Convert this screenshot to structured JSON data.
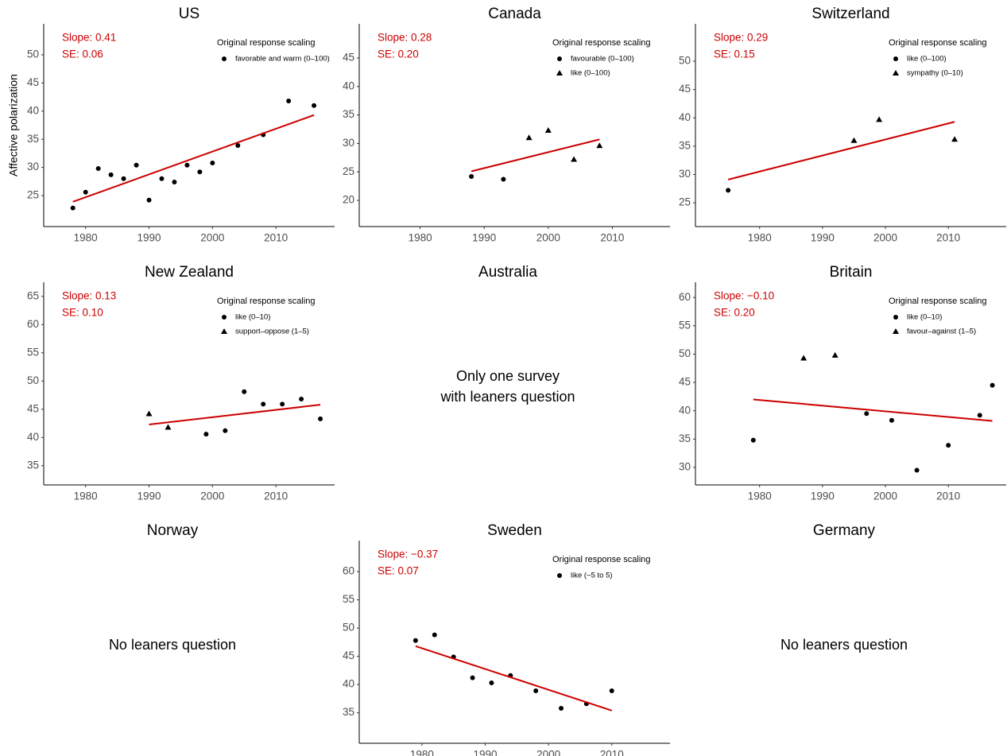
{
  "chart_data": [
    {
      "type": "scatter",
      "title": "US",
      "ylabel": "Affective polarization",
      "xlim": [
        1973.4,
        2019.25
      ],
      "xticks": [
        1980,
        1990,
        2000,
        2010
      ],
      "ylim": [
        19.5,
        55.5
      ],
      "yticks": [
        25,
        30,
        35,
        40,
        45,
        50
      ],
      "annotations": [
        "Slope: 0.41",
        "SE: 0.06"
      ],
      "annotation_color": "#cc0000",
      "legend_title": "Original response scaling",
      "series": [
        {
          "name": "favorable and warm (0–100)",
          "marker": "circle",
          "color": "#000000",
          "x": [
            1978,
            1980,
            1982,
            1984,
            1986,
            1988,
            1990,
            1992,
            1994,
            1996,
            1998,
            2000,
            2004,
            2008,
            2012,
            2016
          ],
          "y": [
            22.8,
            25.6,
            29.8,
            28.7,
            28.0,
            30.4,
            24.2,
            28.0,
            27.4,
            30.4,
            29.2,
            30.8,
            33.9,
            35.8,
            41.8,
            41.0
          ]
        }
      ],
      "trend": {
        "color": "#cc0000",
        "x": [
          1978,
          2016
        ],
        "y": [
          23.9,
          39.3
        ]
      }
    },
    {
      "type": "scatter",
      "title": "Canada",
      "xlim": [
        1970.5,
        2019
      ],
      "xticks": [
        1980,
        1990,
        2000,
        2010
      ],
      "ylim": [
        15.4,
        51
      ],
      "yticks": [
        20,
        25,
        30,
        35,
        40,
        45
      ],
      "annotations": [
        "Slope: 0.28",
        "SE: 0.20"
      ],
      "annotation_color": "#cc0000",
      "legend_title": "Original response scaling",
      "series": [
        {
          "name": "favourable (0–100)",
          "marker": "circle",
          "color": "#000000",
          "x": [
            1988,
            1993
          ],
          "y": [
            24.2,
            23.7
          ]
        },
        {
          "name": "like (0–100)",
          "marker": "triangle",
          "color": "#000000",
          "x": [
            1997,
            2000,
            2004,
            2008
          ],
          "y": [
            31.0,
            32.3,
            27.2,
            29.6
          ]
        }
      ],
      "trend": {
        "color": "#cc0000",
        "x": [
          1988,
          2008
        ],
        "y": [
          25.1,
          30.7
        ]
      }
    },
    {
      "type": "scatter",
      "title": "Switzerland",
      "xlim": [
        1969.8,
        2019.2
      ],
      "xticks": [
        1980,
        1990,
        2000,
        2010
      ],
      "ylim": [
        20.8,
        56.6
      ],
      "yticks": [
        25,
        30,
        35,
        40,
        45,
        50
      ],
      "annotations": [
        "Slope: 0.29",
        "SE: 0.15"
      ],
      "annotation_color": "#cc0000",
      "legend_title": "Original response scaling",
      "series": [
        {
          "name": "like (0–100)",
          "marker": "circle",
          "color": "#000000",
          "x": [
            1975
          ],
          "y": [
            27.2
          ]
        },
        {
          "name": "sympathy (0–10)",
          "marker": "triangle",
          "color": "#000000",
          "x": [
            1995,
            1999,
            2011
          ],
          "y": [
            36.0,
            39.7,
            36.2
          ]
        }
      ],
      "trend": {
        "color": "#cc0000",
        "x": [
          1975,
          2011
        ],
        "y": [
          29.1,
          39.3
        ]
      }
    },
    {
      "type": "scatter",
      "title": "New Zealand",
      "xlim": [
        1973.4,
        2019.25
      ],
      "xticks": [
        1980,
        1990,
        2000,
        2010
      ],
      "ylim": [
        31.6,
        67.5
      ],
      "yticks": [
        35,
        40,
        45,
        50,
        55,
        60,
        65
      ],
      "annotations": [
        "Slope: 0.13",
        "SE: 0.10"
      ],
      "annotation_color": "#cc0000",
      "legend_title": "Original response scaling",
      "series": [
        {
          "name": "like (0–10)",
          "marker": "circle",
          "color": "#000000",
          "x": [
            1999,
            2002,
            2005,
            2008,
            2011,
            2014,
            2017
          ],
          "y": [
            40.6,
            41.2,
            48.1,
            45.9,
            45.9,
            46.8,
            43.3
          ]
        },
        {
          "name": "support–oppose (1–5)",
          "marker": "triangle",
          "color": "#000000",
          "x": [
            1990,
            1993
          ],
          "y": [
            44.2,
            41.8
          ]
        }
      ],
      "trend": {
        "color": "#cc0000",
        "x": [
          1990,
          2017
        ],
        "y": [
          42.3,
          45.8
        ]
      }
    },
    {
      "type": "text",
      "title": "Australia",
      "text": [
        "Only one survey",
        "with leaners question"
      ]
    },
    {
      "type": "scatter",
      "title": "Britain",
      "xlim": [
        1969.8,
        2019.2
      ],
      "xticks": [
        1980,
        1990,
        2000,
        2010
      ],
      "ylim": [
        26.9,
        62.7
      ],
      "yticks": [
        30,
        35,
        40,
        45,
        50,
        55,
        60
      ],
      "annotations": [
        "Slope: −0.10",
        "SE: 0.20"
      ],
      "annotation_color": "#cc0000",
      "legend_title": "Original response scaling",
      "series": [
        {
          "name": "like (0–10)",
          "marker": "circle",
          "color": "#000000",
          "x": [
            1979,
            1997,
            2001,
            2005,
            2010,
            2015,
            2017
          ],
          "y": [
            34.8,
            39.5,
            38.3,
            29.5,
            33.9,
            39.2,
            44.5
          ]
        },
        {
          "name": "favour–against (1–5)",
          "marker": "triangle",
          "color": "#000000",
          "x": [
            1987,
            1992
          ],
          "y": [
            49.3,
            49.8
          ]
        }
      ],
      "trend": {
        "color": "#cc0000",
        "x": [
          1979,
          2017
        ],
        "y": [
          42.0,
          38.2
        ]
      }
    },
    {
      "type": "text",
      "title": "Norway",
      "text": [
        "No leaners question"
      ]
    },
    {
      "type": "scatter",
      "title": "Sweden",
      "xlim": [
        1970.1,
        2019.2
      ],
      "xticks": [
        1980,
        1990,
        2000,
        2010
      ],
      "ylim": [
        29.6,
        65.5
      ],
      "yticks": [
        35,
        40,
        45,
        50,
        55,
        60
      ],
      "annotations": [
        "Slope: −0.37",
        "SE: 0.07"
      ],
      "annotation_color": "#cc0000",
      "legend_title": "Original response scaling",
      "series": [
        {
          "name": "like (−5 to 5)",
          "marker": "circle",
          "color": "#000000",
          "x": [
            1979,
            1982,
            1985,
            1988,
            1991,
            1994,
            1998,
            2002,
            2006,
            2010
          ],
          "y": [
            47.8,
            48.8,
            44.9,
            41.2,
            40.3,
            41.6,
            38.9,
            35.8,
            36.6,
            38.9
          ]
        }
      ],
      "trend": {
        "color": "#cc0000",
        "x": [
          1979,
          2010
        ],
        "y": [
          46.8,
          35.4
        ]
      }
    },
    {
      "type": "text",
      "title": "Germany",
      "text": [
        "No leaners question"
      ]
    }
  ]
}
